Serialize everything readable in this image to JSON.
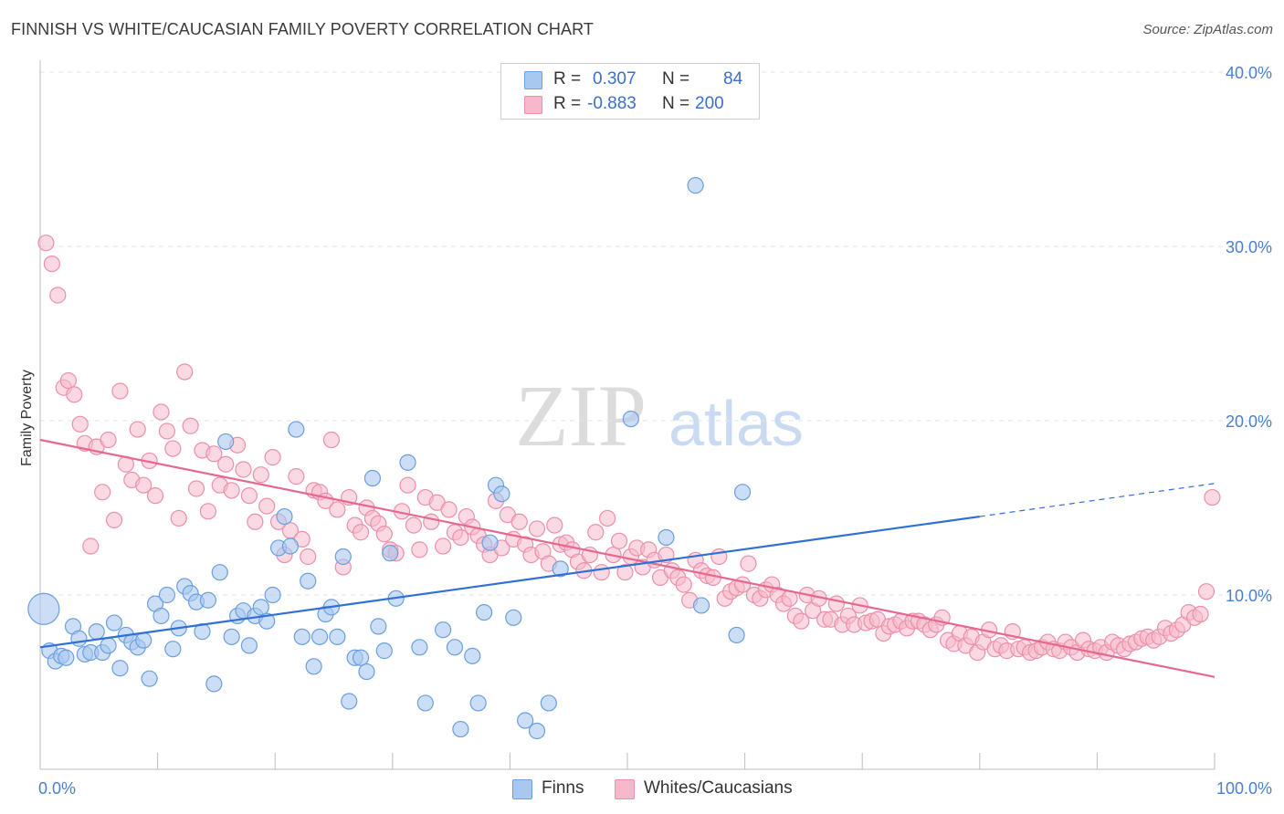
{
  "title": "FINNISH VS WHITE/CAUCASIAN FAMILY POVERTY CORRELATION CHART",
  "source": "Source: ZipAtlas.com",
  "watermark": {
    "zip": "ZIP",
    "atlas": "atlas"
  },
  "legend": {
    "rows": [
      {
        "r_label": "R =",
        "r_value": "0.307",
        "n_label": "N =",
        "n_value": "84"
      },
      {
        "r_label": "R =",
        "r_value": "-0.883",
        "n_label": "N =",
        "n_value": "200"
      }
    ]
  },
  "bottom_legend": {
    "finns": "Finns",
    "whites": "Whites/Caucasians"
  },
  "colors": {
    "finns_fill": "#a9c8ef",
    "finns_stroke": "#6a9fe0",
    "finns_line": "#2f6fd6",
    "whites_fill": "#f6b9cb",
    "whites_stroke": "#ec8fab",
    "whites_line": "#e8678f",
    "tick_text": "#4a7fd1",
    "grid": "#e3e3e3"
  },
  "chart_data": {
    "type": "scatter",
    "xlabel": "",
    "ylabel": "Family Poverty",
    "xlim": [
      0,
      100
    ],
    "ylim": [
      0,
      40
    ],
    "x_tick_labels": [
      "0.0%",
      "100.0%"
    ],
    "y_ticks": [
      10,
      20,
      30,
      40
    ],
    "y_tick_labels": [
      "10.0%",
      "20.0%",
      "30.0%",
      "40.0%"
    ],
    "grid": "horizontal dashed",
    "legend_position": "top-center",
    "series": [
      {
        "name": "Finns",
        "R": 0.307,
        "N": 84,
        "trend": {
          "x": [
            0,
            80
          ],
          "y": [
            7.0,
            14.5
          ],
          "dashed_extension": {
            "x": [
              80,
              100
            ],
            "y": [
              14.5,
              16.4
            ]
          }
        },
        "points": [
          [
            0.3,
            9.2
          ],
          [
            0.8,
            6.8
          ],
          [
            1.3,
            6.2
          ],
          [
            1.8,
            6.5
          ],
          [
            2.2,
            6.4
          ],
          [
            2.8,
            8.2
          ],
          [
            3.3,
            7.5
          ],
          [
            3.8,
            6.6
          ],
          [
            4.3,
            6.7
          ],
          [
            4.8,
            7.9
          ],
          [
            5.3,
            6.7
          ],
          [
            5.8,
            7.1
          ],
          [
            6.3,
            8.4
          ],
          [
            6.8,
            5.8
          ],
          [
            7.3,
            7.7
          ],
          [
            7.8,
            7.3
          ],
          [
            8.3,
            7.0
          ],
          [
            8.8,
            7.4
          ],
          [
            9.3,
            5.2
          ],
          [
            9.8,
            9.5
          ],
          [
            10.3,
            8.8
          ],
          [
            10.8,
            10.0
          ],
          [
            11.3,
            6.9
          ],
          [
            11.8,
            8.1
          ],
          [
            12.3,
            10.5
          ],
          [
            12.8,
            10.1
          ],
          [
            13.3,
            9.6
          ],
          [
            13.8,
            7.9
          ],
          [
            14.3,
            9.7
          ],
          [
            14.8,
            4.9
          ],
          [
            15.3,
            11.3
          ],
          [
            15.8,
            18.8
          ],
          [
            16.3,
            7.6
          ],
          [
            16.8,
            8.8
          ],
          [
            17.3,
            9.1
          ],
          [
            17.8,
            7.1
          ],
          [
            18.3,
            8.8
          ],
          [
            18.8,
            9.3
          ],
          [
            19.3,
            8.5
          ],
          [
            19.8,
            10.0
          ],
          [
            20.3,
            12.7
          ],
          [
            20.8,
            14.5
          ],
          [
            21.3,
            12.8
          ],
          [
            21.8,
            19.5
          ],
          [
            22.3,
            7.6
          ],
          [
            22.8,
            10.8
          ],
          [
            23.3,
            5.9
          ],
          [
            23.8,
            7.6
          ],
          [
            24.3,
            8.9
          ],
          [
            24.8,
            9.3
          ],
          [
            25.3,
            7.6
          ],
          [
            25.8,
            12.2
          ],
          [
            26.3,
            3.9
          ],
          [
            26.8,
            6.4
          ],
          [
            27.3,
            6.4
          ],
          [
            27.8,
            5.6
          ],
          [
            28.3,
            16.7
          ],
          [
            28.8,
            8.2
          ],
          [
            29.3,
            6.8
          ],
          [
            29.8,
            12.4
          ],
          [
            30.3,
            9.8
          ],
          [
            31.3,
            17.6
          ],
          [
            32.3,
            7.0
          ],
          [
            32.8,
            3.8
          ],
          [
            34.3,
            8.0
          ],
          [
            35.3,
            7.0
          ],
          [
            35.8,
            2.3
          ],
          [
            36.8,
            6.5
          ],
          [
            37.3,
            3.8
          ],
          [
            37.8,
            9.0
          ],
          [
            38.3,
            13.0
          ],
          [
            38.8,
            16.3
          ],
          [
            39.3,
            15.8
          ],
          [
            40.3,
            8.7
          ],
          [
            41.3,
            2.8
          ],
          [
            42.3,
            2.2
          ],
          [
            43.3,
            3.8
          ],
          [
            44.3,
            11.5
          ],
          [
            50.3,
            20.1
          ],
          [
            53.3,
            13.3
          ],
          [
            55.8,
            33.5
          ],
          [
            56.3,
            9.4
          ],
          [
            59.3,
            7.7
          ],
          [
            59.8,
            15.9
          ]
        ]
      },
      {
        "name": "Whites/Caucasians",
        "R": -0.883,
        "N": 200,
        "trend": {
          "x": [
            0,
            100
          ],
          "y": [
            18.9,
            5.3
          ]
        },
        "points": [
          [
            0.5,
            30.2
          ],
          [
            1.0,
            29.0
          ],
          [
            1.5,
            27.2
          ],
          [
            2.0,
            21.9
          ],
          [
            2.4,
            22.3
          ],
          [
            2.9,
            21.5
          ],
          [
            3.4,
            19.8
          ],
          [
            3.8,
            18.7
          ],
          [
            4.3,
            12.8
          ],
          [
            4.8,
            18.5
          ],
          [
            5.3,
            15.9
          ],
          [
            5.8,
            18.9
          ],
          [
            6.3,
            14.3
          ],
          [
            6.8,
            21.7
          ],
          [
            7.3,
            17.5
          ],
          [
            7.8,
            16.6
          ],
          [
            8.3,
            19.5
          ],
          [
            8.8,
            16.3
          ],
          [
            9.3,
            17.7
          ],
          [
            9.8,
            15.7
          ],
          [
            10.3,
            20.5
          ],
          [
            10.8,
            19.4
          ],
          [
            11.3,
            18.4
          ],
          [
            11.8,
            14.4
          ],
          [
            12.3,
            22.8
          ],
          [
            12.8,
            19.7
          ],
          [
            13.3,
            16.1
          ],
          [
            13.8,
            18.3
          ],
          [
            14.3,
            14.8
          ],
          [
            14.8,
            18.1
          ],
          [
            15.3,
            16.3
          ],
          [
            15.8,
            17.5
          ],
          [
            16.3,
            16.0
          ],
          [
            16.8,
            18.6
          ],
          [
            17.3,
            17.2
          ],
          [
            17.8,
            15.7
          ],
          [
            18.3,
            14.2
          ],
          [
            18.8,
            16.9
          ],
          [
            19.3,
            15.1
          ],
          [
            19.8,
            17.9
          ],
          [
            20.3,
            14.2
          ],
          [
            20.8,
            12.3
          ],
          [
            21.3,
            13.7
          ],
          [
            21.8,
            16.8
          ],
          [
            22.3,
            13.2
          ],
          [
            22.8,
            12.2
          ],
          [
            23.3,
            16.0
          ],
          [
            23.8,
            15.9
          ],
          [
            24.3,
            15.4
          ],
          [
            24.8,
            18.9
          ],
          [
            25.3,
            14.9
          ],
          [
            25.8,
            11.6
          ],
          [
            26.3,
            15.6
          ],
          [
            26.8,
            14.0
          ],
          [
            27.3,
            13.6
          ],
          [
            27.8,
            15.0
          ],
          [
            28.3,
            14.4
          ],
          [
            28.8,
            14.1
          ],
          [
            29.3,
            13.5
          ],
          [
            29.8,
            12.6
          ],
          [
            30.3,
            12.4
          ],
          [
            30.8,
            14.8
          ],
          [
            31.3,
            16.3
          ],
          [
            31.8,
            14.0
          ],
          [
            32.3,
            12.6
          ],
          [
            32.8,
            15.6
          ],
          [
            33.3,
            14.2
          ],
          [
            33.8,
            15.3
          ],
          [
            34.3,
            12.8
          ],
          [
            34.8,
            14.9
          ],
          [
            35.3,
            13.6
          ],
          [
            35.8,
            13.3
          ],
          [
            36.3,
            14.5
          ],
          [
            36.8,
            13.9
          ],
          [
            37.3,
            13.4
          ],
          [
            37.8,
            12.9
          ],
          [
            38.3,
            12.3
          ],
          [
            38.8,
            15.4
          ],
          [
            39.3,
            12.7
          ],
          [
            39.8,
            14.6
          ],
          [
            40.3,
            13.2
          ],
          [
            40.8,
            14.2
          ],
          [
            41.3,
            12.9
          ],
          [
            41.8,
            12.3
          ],
          [
            42.3,
            13.8
          ],
          [
            42.8,
            12.5
          ],
          [
            43.3,
            11.8
          ],
          [
            43.8,
            14.0
          ],
          [
            44.3,
            12.9
          ],
          [
            44.8,
            13.0
          ],
          [
            45.3,
            12.6
          ],
          [
            45.8,
            11.9
          ],
          [
            46.3,
            11.4
          ],
          [
            46.8,
            12.3
          ],
          [
            47.3,
            13.6
          ],
          [
            47.8,
            11.3
          ],
          [
            48.3,
            14.4
          ],
          [
            48.8,
            12.3
          ],
          [
            49.3,
            13.1
          ],
          [
            49.8,
            11.3
          ],
          [
            50.3,
            12.2
          ],
          [
            50.8,
            12.7
          ],
          [
            51.3,
            11.6
          ],
          [
            51.8,
            12.6
          ],
          [
            52.3,
            12.0
          ],
          [
            52.8,
            11.0
          ],
          [
            53.3,
            12.3
          ],
          [
            53.8,
            11.4
          ],
          [
            54.3,
            11.0
          ],
          [
            54.8,
            10.6
          ],
          [
            55.3,
            9.7
          ],
          [
            55.8,
            12.0
          ],
          [
            56.3,
            11.4
          ],
          [
            56.8,
            11.1
          ],
          [
            57.3,
            11.0
          ],
          [
            57.8,
            12.2
          ],
          [
            58.3,
            9.8
          ],
          [
            58.8,
            10.2
          ],
          [
            59.3,
            10.4
          ],
          [
            59.8,
            10.6
          ],
          [
            60.3,
            11.8
          ],
          [
            60.8,
            10.0
          ],
          [
            61.3,
            9.8
          ],
          [
            61.8,
            10.3
          ],
          [
            62.3,
            10.6
          ],
          [
            62.8,
            10.0
          ],
          [
            63.3,
            9.5
          ],
          [
            63.8,
            9.8
          ],
          [
            64.3,
            8.8
          ],
          [
            64.8,
            8.5
          ],
          [
            65.3,
            10.0
          ],
          [
            65.8,
            9.1
          ],
          [
            66.3,
            9.8
          ],
          [
            66.8,
            8.6
          ],
          [
            67.3,
            8.6
          ],
          [
            67.8,
            9.5
          ],
          [
            68.3,
            8.3
          ],
          [
            68.8,
            8.8
          ],
          [
            69.3,
            8.3
          ],
          [
            69.8,
            9.4
          ],
          [
            70.3,
            8.4
          ],
          [
            70.8,
            8.5
          ],
          [
            71.3,
            8.6
          ],
          [
            71.8,
            7.8
          ],
          [
            72.3,
            8.2
          ],
          [
            72.8,
            8.3
          ],
          [
            73.3,
            8.5
          ],
          [
            73.8,
            8.1
          ],
          [
            74.3,
            8.5
          ],
          [
            74.8,
            8.5
          ],
          [
            75.3,
            8.3
          ],
          [
            75.8,
            8.0
          ],
          [
            76.3,
            8.3
          ],
          [
            76.8,
            8.7
          ],
          [
            77.3,
            7.4
          ],
          [
            77.8,
            7.2
          ],
          [
            78.3,
            7.8
          ],
          [
            78.8,
            7.1
          ],
          [
            79.3,
            7.6
          ],
          [
            79.8,
            6.7
          ],
          [
            80.3,
            7.3
          ],
          [
            80.8,
            8.0
          ],
          [
            81.3,
            6.9
          ],
          [
            81.8,
            7.1
          ],
          [
            82.3,
            6.8
          ],
          [
            82.8,
            7.9
          ],
          [
            83.3,
            6.9
          ],
          [
            83.8,
            7.0
          ],
          [
            84.3,
            6.7
          ],
          [
            84.8,
            6.8
          ],
          [
            85.3,
            7.0
          ],
          [
            85.8,
            7.3
          ],
          [
            86.3,
            6.9
          ],
          [
            86.8,
            6.8
          ],
          [
            87.3,
            7.3
          ],
          [
            87.8,
            7.0
          ],
          [
            88.3,
            6.7
          ],
          [
            88.8,
            7.4
          ],
          [
            89.3,
            6.9
          ],
          [
            89.8,
            6.8
          ],
          [
            90.3,
            7.0
          ],
          [
            90.8,
            6.7
          ],
          [
            91.3,
            7.3
          ],
          [
            91.8,
            7.1
          ],
          [
            92.3,
            6.9
          ],
          [
            92.8,
            7.2
          ],
          [
            93.3,
            7.3
          ],
          [
            93.8,
            7.5
          ],
          [
            94.3,
            7.6
          ],
          [
            94.8,
            7.4
          ],
          [
            95.3,
            7.6
          ],
          [
            95.8,
            8.1
          ],
          [
            96.3,
            7.8
          ],
          [
            96.8,
            8.0
          ],
          [
            97.3,
            8.3
          ],
          [
            97.8,
            9.0
          ],
          [
            98.3,
            8.7
          ],
          [
            98.8,
            8.9
          ],
          [
            99.3,
            10.2
          ],
          [
            99.8,
            15.6
          ]
        ]
      }
    ]
  }
}
